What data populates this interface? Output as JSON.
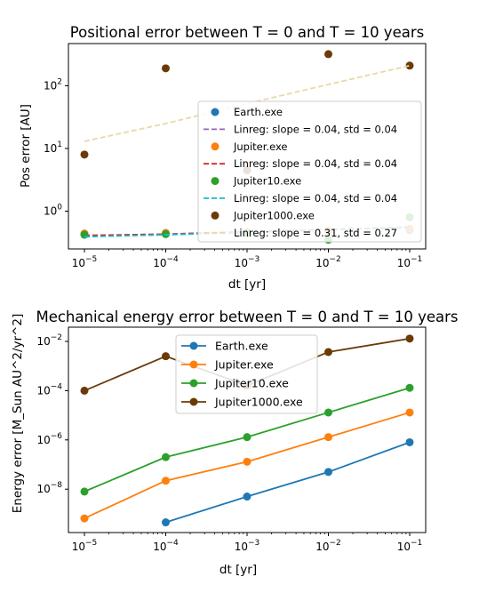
{
  "chart_data": [
    {
      "type": "scatter",
      "title": "Positional error between T = 0 and T = 10 years",
      "xlabel": "dt [yr]",
      "ylabel": "Pos error [AU]",
      "xscale": "log",
      "yscale": "log",
      "x": [
        1e-05,
        0.0001,
        0.001,
        0.01,
        0.1
      ],
      "x_tick_labels": [
        "10^-5",
        "10^-4",
        "10^-3",
        "10^-2",
        "10^-1"
      ],
      "y_tick_labels": [
        "10^0",
        "10^1",
        "10^2"
      ],
      "legend_position": "lower-right",
      "series": [
        {
          "name": "Earth.exe",
          "color": "#1f77b4",
          "values": [
            0.43,
            0.44,
            0.46,
            0.48,
            0.5
          ]
        },
        {
          "name": "Linreg: slope = 0.04, std = 0.04",
          "color": "#9467bd",
          "style": "dashed",
          "values": [
            0.4,
            0.42,
            0.46,
            0.5,
            0.55
          ]
        },
        {
          "name": "Jupiter.exe",
          "color": "#ff7f0e",
          "values": [
            0.44,
            0.45,
            0.47,
            0.49,
            0.52
          ]
        },
        {
          "name": "Linreg: slope = 0.04, std = 0.04",
          "color": "#d62728",
          "style": "dashed",
          "values": [
            0.41,
            0.43,
            0.47,
            0.51,
            0.56
          ]
        },
        {
          "name": "Jupiter10.exe",
          "color": "#2ca02c",
          "values": [
            0.42,
            0.43,
            0.44,
            0.35,
            0.8
          ]
        },
        {
          "name": "Linreg: slope = 0.04, std = 0.04",
          "color": "#17becf",
          "style": "dashed",
          "values": [
            0.39,
            0.42,
            0.46,
            0.5,
            0.55
          ]
        },
        {
          "name": "Jupiter1000.exe",
          "color": "#6b3a07",
          "values": [
            8,
            190,
            4.5,
            320,
            210
          ]
        },
        {
          "name": "Linreg: slope = 0.31, std = 0.27",
          "color": "#e8d9a8",
          "style": "dashed",
          "values": [
            13,
            25,
            52,
            105,
            210
          ]
        }
      ]
    },
    {
      "type": "line",
      "title": "Mechanical energy error between T = 0 and T = 10 years",
      "xlabel": "dt [yr]",
      "ylabel": "Energy error  [M_Sun AU^2/yr^2]",
      "xscale": "log",
      "yscale": "log",
      "x": [
        1e-05,
        0.0001,
        0.001,
        0.01,
        0.1
      ],
      "x_tick_labels": [
        "10^-5",
        "10^-4",
        "10^-3",
        "10^-2",
        "10^-1"
      ],
      "y_tick_labels": [
        "10^-8",
        "10^-6",
        "10^-4",
        "10^-2"
      ],
      "legend_position": "top-center",
      "series": [
        {
          "name": "Earth.exe",
          "color": "#1f77b4",
          "values": [
            null,
            4.5e-10,
            5e-09,
            5e-08,
            8e-07
          ]
        },
        {
          "name": "Jupiter.exe",
          "color": "#ff7f0e",
          "values": [
            6.5e-10,
            2.2e-08,
            1.3e-07,
            1.3e-06,
            1.3e-05
          ]
        },
        {
          "name": "Jupiter10.exe",
          "color": "#2ca02c",
          "values": [
            8e-09,
            2e-07,
            1.3e-06,
            1.3e-05,
            0.00013
          ]
        },
        {
          "name": "Jupiter1000.exe",
          "color": "#6b3a07",
          "values": [
            0.0001,
            0.0025,
            0.00016,
            0.0037,
            0.013
          ]
        }
      ]
    }
  ]
}
